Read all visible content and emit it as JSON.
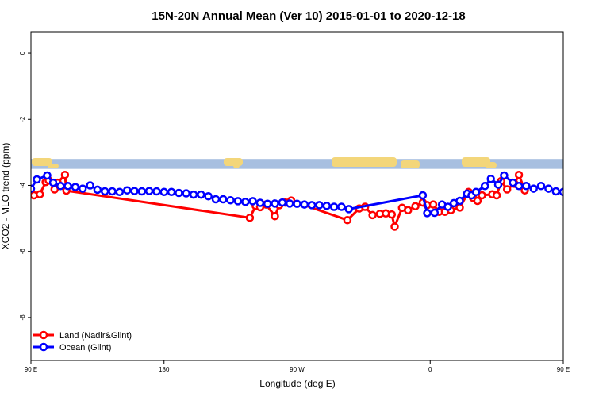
{
  "chart_data": {
    "type": "line",
    "title": "15N-20N Annual Mean (Ver 10)   2015-01-01 to 2020-12-18",
    "xlabel": "Longitude (deg E)",
    "ylabel": "XCO2 - MLO trend (ppm)",
    "xlim": [
      90,
      450
    ],
    "ylim": [
      -9.3,
      0.65
    ],
    "x_ticks": [
      {
        "value": 90,
        "label": "90 E"
      },
      {
        "value": 180,
        "label": "180"
      },
      {
        "value": 270,
        "label": "90 W"
      },
      {
        "value": 360,
        "label": "0"
      },
      {
        "value": 450,
        "label": "90 E"
      },
      {
        "value": 540,
        "label": "180"
      }
    ],
    "y_ticks": [
      0,
      -2,
      -4,
      -6,
      -8
    ],
    "map_band": {
      "y_top": -3.2,
      "y_bottom": -3.5,
      "ocean_color": "#a7bfe0",
      "land_color": "#f3d67a"
    },
    "legend": {
      "position": "bottom-left"
    },
    "series": [
      {
        "name": "Land (Nadir&Glint)",
        "color": "#ff0000",
        "points": [
          [
            92,
            -4.3
          ],
          [
            96,
            -4.27
          ],
          [
            100,
            -3.9
          ],
          [
            102,
            -3.85
          ],
          [
            106,
            -4.12
          ],
          [
            108,
            -3.92
          ],
          [
            113,
            -3.68
          ],
          [
            114,
            -4.16
          ],
          [
            238,
            -4.98
          ],
          [
            242,
            -4.62
          ],
          [
            245,
            -4.66
          ],
          [
            249,
            -4.58
          ],
          [
            255,
            -4.93
          ],
          [
            258,
            -4.6
          ],
          [
            262,
            -4.52
          ],
          [
            266,
            -4.46
          ],
          [
            304,
            -5.05
          ],
          [
            312,
            -4.7
          ],
          [
            316,
            -4.65
          ],
          [
            321,
            -4.9
          ],
          [
            326,
            -4.86
          ],
          [
            330,
            -4.85
          ],
          [
            334,
            -4.88
          ],
          [
            336,
            -5.25
          ],
          [
            341,
            -4.68
          ],
          [
            345,
            -4.75
          ],
          [
            350,
            -4.63
          ],
          [
            355,
            -4.52
          ],
          [
            358,
            -4.6
          ],
          [
            362,
            -4.58
          ],
          [
            366,
            -4.8
          ],
          [
            370,
            -4.8
          ],
          [
            374,
            -4.75
          ],
          [
            380,
            -4.67
          ],
          [
            386,
            -4.2
          ],
          [
            389,
            -4.38
          ],
          [
            392,
            -4.47
          ],
          [
            395,
            -4.3
          ],
          [
            402,
            -4.27
          ],
          [
            405,
            -4.3
          ],
          [
            408,
            -3.87
          ],
          [
            412,
            -4.12
          ],
          [
            417,
            -3.95
          ],
          [
            420,
            -3.68
          ],
          [
            424,
            -4.15
          ]
        ]
      },
      {
        "name": "Ocean (Glint)",
        "color": "#0000ff",
        "points": [
          [
            90,
            -4.1
          ],
          [
            94,
            -3.82
          ],
          [
            101,
            -3.7
          ],
          [
            105,
            -3.92
          ],
          [
            110,
            -4.02
          ],
          [
            115,
            -4.02
          ],
          [
            120,
            -4.05
          ],
          [
            125,
            -4.1
          ],
          [
            130,
            -4.0
          ],
          [
            135,
            -4.13
          ],
          [
            140,
            -4.18
          ],
          [
            145,
            -4.18
          ],
          [
            150,
            -4.2
          ],
          [
            155,
            -4.15
          ],
          [
            160,
            -4.17
          ],
          [
            165,
            -4.18
          ],
          [
            170,
            -4.17
          ],
          [
            175,
            -4.18
          ],
          [
            180,
            -4.2
          ],
          [
            185,
            -4.2
          ],
          [
            190,
            -4.23
          ],
          [
            195,
            -4.24
          ],
          [
            200,
            -4.28
          ],
          [
            205,
            -4.28
          ],
          [
            210,
            -4.33
          ],
          [
            215,
            -4.42
          ],
          [
            220,
            -4.42
          ],
          [
            225,
            -4.45
          ],
          [
            230,
            -4.48
          ],
          [
            235,
            -4.5
          ],
          [
            240,
            -4.48
          ],
          [
            245,
            -4.53
          ],
          [
            250,
            -4.56
          ],
          [
            255,
            -4.55
          ],
          [
            260,
            -4.52
          ],
          [
            265,
            -4.55
          ],
          [
            270,
            -4.56
          ],
          [
            275,
            -4.58
          ],
          [
            280,
            -4.6
          ],
          [
            285,
            -4.6
          ],
          [
            290,
            -4.62
          ],
          [
            295,
            -4.65
          ],
          [
            300,
            -4.65
          ],
          [
            305,
            -4.72
          ],
          [
            355,
            -4.3
          ],
          [
            358,
            -4.84
          ],
          [
            363,
            -4.83
          ],
          [
            368,
            -4.58
          ],
          [
            372,
            -4.65
          ],
          [
            376,
            -4.54
          ],
          [
            380,
            -4.47
          ],
          [
            385,
            -4.25
          ],
          [
            388,
            -4.3
          ],
          [
            391,
            -4.2
          ],
          [
            397,
            -4.02
          ],
          [
            401,
            -3.8
          ],
          [
            406,
            -3.98
          ],
          [
            410,
            -3.7
          ],
          [
            416,
            -3.92
          ],
          [
            420,
            -4.02
          ],
          [
            425,
            -4.02
          ],
          [
            430,
            -4.1
          ],
          [
            435,
            -4.02
          ],
          [
            440,
            -4.1
          ],
          [
            445,
            -4.18
          ],
          [
            450,
            -4.2
          ],
          [
            455,
            -4.15
          ],
          [
            460,
            -4.2
          ],
          [
            465,
            -4.18
          ],
          [
            470,
            -4.22
          ],
          [
            475,
            -4.17
          ],
          [
            480,
            -4.18
          ],
          [
            485,
            -4.2
          ],
          [
            490,
            -4.2
          ],
          [
            495,
            -4.2
          ]
        ]
      }
    ]
  }
}
